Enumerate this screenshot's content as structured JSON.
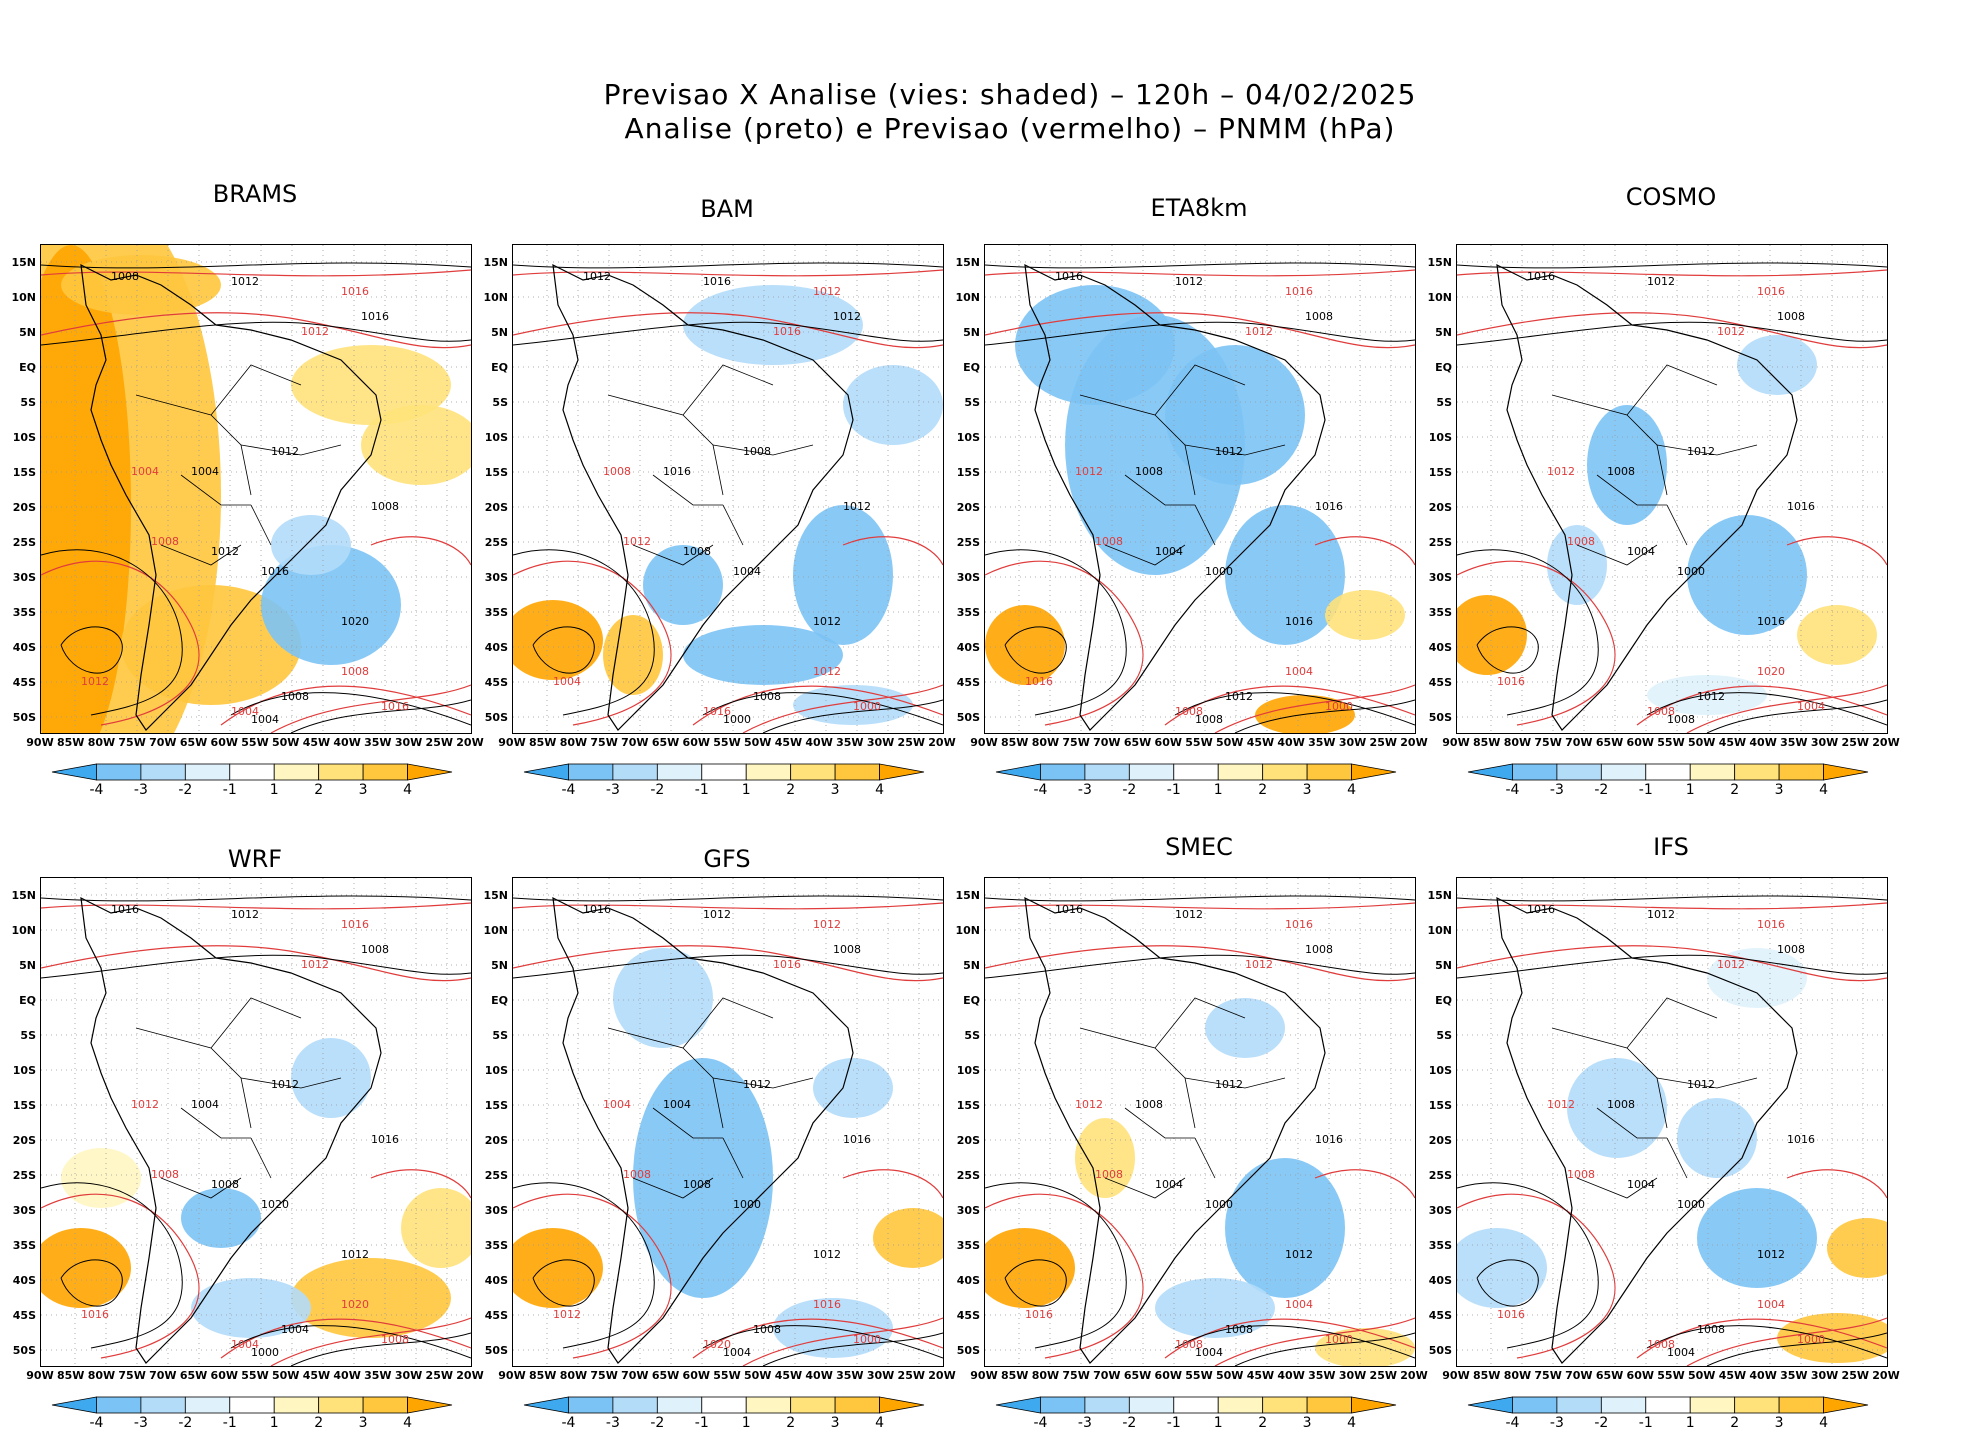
{
  "title_line1": "Previsao X Analise (vies: shaded) – 120h – 04/02/2025",
  "title_line2": "Analise (preto) e Previsao (vermelho) – PNMM (hPa)",
  "lat_labels": [
    "15N",
    "10N",
    "5N",
    "EQ",
    "5S",
    "10S",
    "15S",
    "20S",
    "25S",
    "30S",
    "35S",
    "40S",
    "45S",
    "50S"
  ],
  "lon_labels": [
    "90W",
    "85W",
    "80W",
    "75W",
    "70W",
    "65W",
    "60W",
    "55W",
    "50W",
    "45W",
    "40W",
    "35W",
    "30W",
    "25W",
    "20W"
  ],
  "colorbar_labels": [
    "-4",
    "-3",
    "-2",
    "-1",
    "1",
    "2",
    "3",
    "4"
  ],
  "colors": {
    "neg4": "#3fa9f0",
    "neg3": "#7cc3f5",
    "neg2": "#b3dcf9",
    "neg1": "#dff2fc",
    "pos1": "#fff6c2",
    "pos2": "#ffe27a",
    "pos3": "#ffc73d",
    "pos4": "#ffa500",
    "analysis": "#000000",
    "forecast": "#e03c3c"
  },
  "panels": [
    {
      "name": "BRAMS",
      "labels_black": [
        "1008",
        "1012",
        "1016",
        "1012",
        "1008",
        "1004",
        "1012",
        "1016",
        "1020",
        "1008",
        "1004"
      ],
      "labels_red": [
        "1016",
        "1012",
        "1008",
        "1004",
        "1012",
        "1008",
        "1004",
        "1016"
      ]
    },
    {
      "name": "BAM",
      "labels_black": [
        "1012",
        "1016",
        "1012",
        "1008",
        "1012",
        "1016",
        "1008",
        "1004",
        "1012",
        "1008",
        "1000"
      ],
      "labels_red": [
        "1012",
        "1016",
        "1012",
        "1008",
        "1004",
        "1012",
        "1016",
        "1000"
      ]
    },
    {
      "name": "ETA8km",
      "labels_black": [
        "1016",
        "1012",
        "1008",
        "1012",
        "1016",
        "1008",
        "1004",
        "1000",
        "1016",
        "1012",
        "1008"
      ],
      "labels_red": [
        "1016",
        "1012",
        "1008",
        "1012",
        "1016",
        "1004",
        "1008",
        "1000"
      ]
    },
    {
      "name": "COSMO",
      "labels_black": [
        "1016",
        "1012",
        "1008",
        "1012",
        "1016",
        "1008",
        "1004",
        "1000",
        "1016",
        "1012",
        "1008"
      ],
      "labels_red": [
        "1016",
        "1012",
        "1008",
        "1012",
        "1016",
        "1020",
        "1008",
        "1004"
      ]
    },
    {
      "name": "WRF",
      "labels_black": [
        "1016",
        "1012",
        "1008",
        "1012",
        "1016",
        "1004",
        "1008",
        "1020",
        "1012",
        "1004",
        "1000"
      ],
      "labels_red": [
        "1016",
        "1012",
        "1008",
        "1012",
        "1016",
        "1020",
        "1004",
        "1008"
      ]
    },
    {
      "name": "GFS",
      "labels_black": [
        "1016",
        "1012",
        "1008",
        "1012",
        "1016",
        "1004",
        "1008",
        "1000",
        "1012",
        "1008",
        "1004"
      ],
      "labels_red": [
        "1012",
        "1016",
        "1008",
        "1004",
        "1012",
        "1016",
        "1020",
        "1000"
      ]
    },
    {
      "name": "SMEC",
      "labels_black": [
        "1016",
        "1012",
        "1008",
        "1012",
        "1016",
        "1008",
        "1004",
        "1000",
        "1012",
        "1008",
        "1004"
      ],
      "labels_red": [
        "1016",
        "1012",
        "1008",
        "1012",
        "1016",
        "1004",
        "1008",
        "1000"
      ]
    },
    {
      "name": "IFS",
      "labels_black": [
        "1016",
        "1012",
        "1008",
        "1012",
        "1016",
        "1008",
        "1004",
        "1000",
        "1012",
        "1008",
        "1004"
      ],
      "labels_red": [
        "1016",
        "1012",
        "1008",
        "1012",
        "1016",
        "1004",
        "1008",
        "1000"
      ]
    }
  ]
}
